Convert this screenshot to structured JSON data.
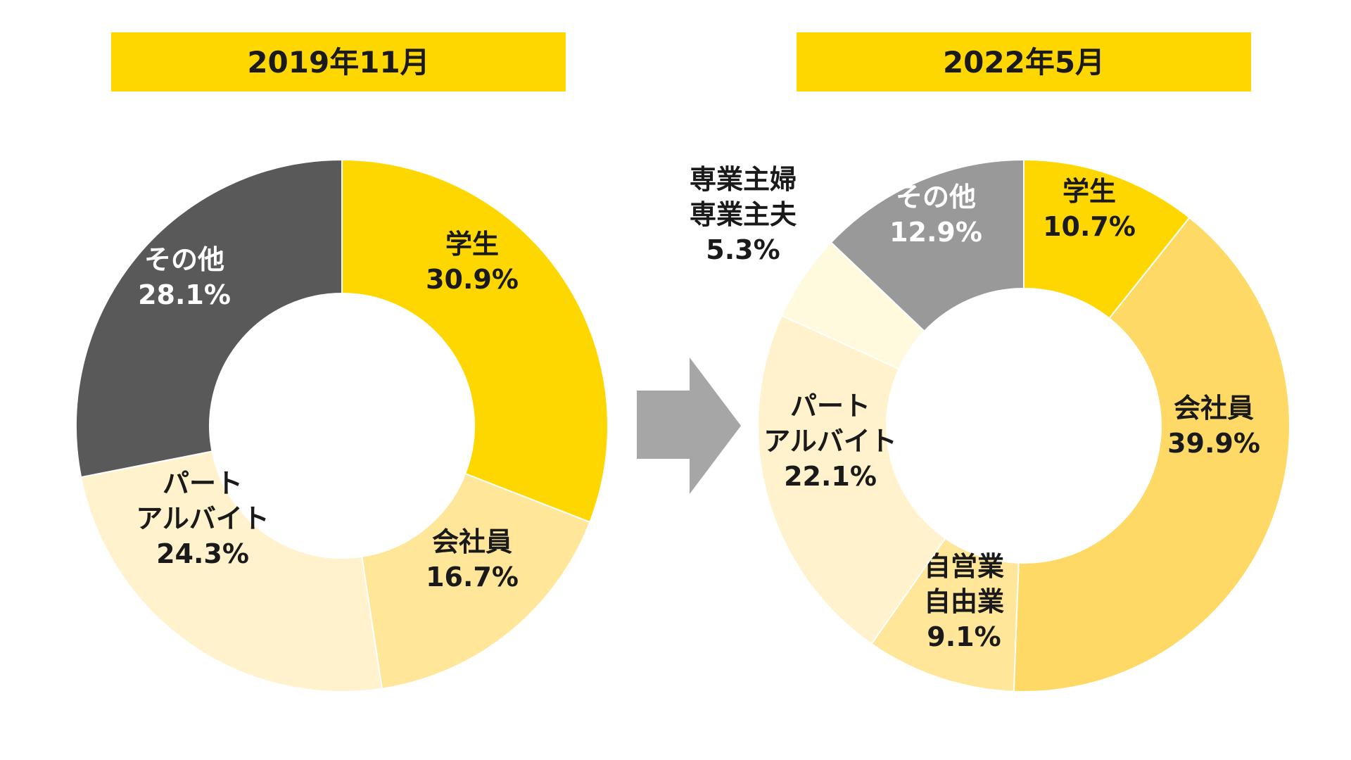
{
  "chart_data": [
    {
      "type": "pie",
      "title": "2019年11月",
      "donut": true,
      "slices": [
        {
          "label": [
            "学生"
          ],
          "value": 30.9,
          "value_label": "30.9%",
          "color": "#FFD700",
          "text_color": "#1a1a1a"
        },
        {
          "label": [
            "会社員"
          ],
          "value": 16.7,
          "value_label": "16.7%",
          "color": "#FFE699",
          "text_color": "#1a1a1a"
        },
        {
          "label": [
            "パート",
            "アルバイト"
          ],
          "value": 24.3,
          "value_label": "24.3%",
          "color": "#FFF2CC",
          "text_color": "#1a1a1a"
        },
        {
          "label": [
            "その他"
          ],
          "value": 28.1,
          "value_label": "28.1%",
          "color": "#595959",
          "text_color": "#ffffff"
        }
      ]
    },
    {
      "type": "pie",
      "title": "2022年5月",
      "donut": true,
      "slices": [
        {
          "label": [
            "学生"
          ],
          "value": 10.7,
          "value_label": "10.7%",
          "color": "#FFD700",
          "text_color": "#1a1a1a"
        },
        {
          "label": [
            "会社員"
          ],
          "value": 39.9,
          "value_label": "39.9%",
          "color": "#FFD966",
          "text_color": "#1a1a1a"
        },
        {
          "label": [
            "自営業",
            "自由業"
          ],
          "value": 9.1,
          "value_label": "9.1%",
          "color": "#FFE699",
          "text_color": "#1a1a1a"
        },
        {
          "label": [
            "パート",
            "アルバイト"
          ],
          "value": 22.1,
          "value_label": "22.1%",
          "color": "#FFF2CC",
          "text_color": "#1a1a1a"
        },
        {
          "label": [
            "専業主婦",
            "専業主夫"
          ],
          "value": 5.3,
          "value_label": "5.3%",
          "color": "#FFF9DD",
          "text_color": "#1a1a1a"
        },
        {
          "label": [
            "その他"
          ],
          "value": 12.9,
          "value_label": "12.9%",
          "color": "#999999",
          "text_color": "#ffffff"
        }
      ]
    }
  ],
  "arrow": {
    "icon": "right-arrow-icon",
    "color": "#A6A6A6"
  }
}
